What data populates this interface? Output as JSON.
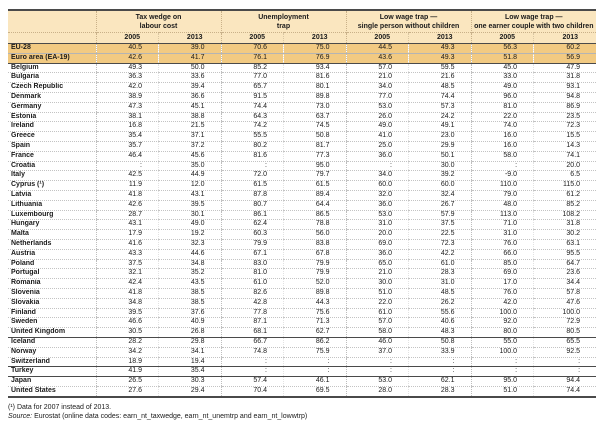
{
  "colors": {
    "header_bg": "#FAE6BF",
    "highlight_bg": "#F2CA82",
    "rule_dark": "#4A4A4A"
  },
  "table": {
    "col_groups": [
      {
        "line1": "Tax wedge on",
        "line2": "labour cost"
      },
      {
        "line1": "Unemployment",
        "line2": "trap"
      },
      {
        "line1": "Low wage trap —",
        "line2": "single person without children"
      },
      {
        "line1": "Low wage trap —",
        "line2": "one earner couple with two children"
      }
    ],
    "year_headers": [
      "2005",
      "2013",
      "2005",
      "2013",
      "2005",
      "2013",
      "2005",
      "2013"
    ],
    "rows": [
      {
        "name": "EU-28",
        "values": [
          "40.5",
          "39.0",
          "70.6",
          "75.0",
          "44.5",
          "49.3",
          "56.3",
          "60.2"
        ],
        "highlight": true
      },
      {
        "name": "Euro area (EA-19)",
        "values": [
          "42.6",
          "41.7",
          "76.1",
          "76.9",
          "43.6",
          "49.3",
          "51.8",
          "56.9"
        ],
        "highlight": true,
        "rule_after": true
      },
      {
        "name": "Belgium",
        "values": [
          "49.3",
          "50.0",
          "85.2",
          "93.4",
          "57.0",
          "59.5",
          "45.0",
          "47.9"
        ]
      },
      {
        "name": "Bulgaria",
        "values": [
          "36.3",
          "33.6",
          "77.0",
          "81.6",
          "21.0",
          "21.6",
          "33.0",
          "31.8"
        ]
      },
      {
        "name": "Czech Republic",
        "values": [
          "42.0",
          "39.4",
          "65.7",
          "80.1",
          "34.0",
          "48.5",
          "49.0",
          "93.1"
        ]
      },
      {
        "name": "Denmark",
        "values": [
          "38.9",
          "36.6",
          "91.5",
          "89.8",
          "77.0",
          "74.4",
          "96.0",
          "94.8"
        ]
      },
      {
        "name": "Germany",
        "values": [
          "47.3",
          "45.1",
          "74.4",
          "73.0",
          "53.0",
          "57.3",
          "81.0",
          "86.9"
        ]
      },
      {
        "name": "Estonia",
        "values": [
          "38.1",
          "38.8",
          "64.3",
          "63.7",
          "26.0",
          "24.2",
          "22.0",
          "23.5"
        ]
      },
      {
        "name": "Ireland",
        "values": [
          "16.8",
          "21.5",
          "74.2",
          "74.5",
          "49.0",
          "49.1",
          "74.0",
          "72.3"
        ]
      },
      {
        "name": "Greece",
        "values": [
          "35.4",
          "37.1",
          "55.5",
          "50.8",
          "41.0",
          "23.0",
          "16.0",
          "15.5"
        ]
      },
      {
        "name": "Spain",
        "values": [
          "35.7",
          "37.2",
          "80.2",
          "81.7",
          "25.0",
          "29.9",
          "16.0",
          "14.3"
        ]
      },
      {
        "name": "France",
        "values": [
          "46.4",
          "45.6",
          "81.6",
          "77.3",
          "36.0",
          "50.1",
          "58.0",
          "74.1"
        ]
      },
      {
        "name": "Croatia",
        "values": [
          ":",
          "35.0",
          ":",
          "95.0",
          ":",
          "30.0",
          ":",
          "20.0"
        ]
      },
      {
        "name": "Italy",
        "values": [
          "42.5",
          "44.9",
          "72.0",
          "79.7",
          "34.0",
          "39.2",
          "-9.0",
          "6.5"
        ]
      },
      {
        "name": "Cyprus (¹)",
        "values": [
          "11.9",
          "12.0",
          "61.5",
          "61.5",
          "60.0",
          "60.0",
          "110.0",
          "115.0"
        ]
      },
      {
        "name": "Latvia",
        "values": [
          "41.8",
          "43.1",
          "87.8",
          "89.4",
          "32.0",
          "32.4",
          "79.0",
          "61.2"
        ]
      },
      {
        "name": "Lithuania",
        "values": [
          "42.6",
          "39.5",
          "80.7",
          "64.4",
          "36.0",
          "26.7",
          "48.0",
          "85.2"
        ]
      },
      {
        "name": "Luxembourg",
        "values": [
          "28.7",
          "30.1",
          "86.1",
          "86.5",
          "53.0",
          "57.9",
          "113.0",
          "108.2"
        ]
      },
      {
        "name": "Hungary",
        "values": [
          "43.1",
          "49.0",
          "62.4",
          "78.8",
          "31.0",
          "37.5",
          "71.0",
          "31.8"
        ]
      },
      {
        "name": "Malta",
        "values": [
          "17.9",
          "19.2",
          "60.3",
          "56.0",
          "20.0",
          "22.5",
          "31.0",
          "30.2"
        ]
      },
      {
        "name": "Netherlands",
        "values": [
          "41.6",
          "32.3",
          "79.9",
          "83.8",
          "69.0",
          "72.3",
          "76.0",
          "63.1"
        ]
      },
      {
        "name": "Austria",
        "values": [
          "43.3",
          "44.6",
          "67.1",
          "67.8",
          "36.0",
          "42.2",
          "66.0",
          "95.5"
        ]
      },
      {
        "name": "Poland",
        "values": [
          "37.5",
          "34.8",
          "83.0",
          "79.9",
          "65.0",
          "61.0",
          "85.0",
          "64.7"
        ]
      },
      {
        "name": "Portugal",
        "values": [
          "32.1",
          "35.2",
          "81.0",
          "79.9",
          "21.0",
          "28.3",
          "69.0",
          "23.6"
        ]
      },
      {
        "name": "Romania",
        "values": [
          "42.4",
          "43.5",
          "61.0",
          "52.0",
          "30.0",
          "31.0",
          "17.0",
          "34.4"
        ]
      },
      {
        "name": "Slovenia",
        "values": [
          "41.8",
          "38.5",
          "82.6",
          "89.8",
          "51.0",
          "48.5",
          "76.0",
          "57.8"
        ]
      },
      {
        "name": "Slovakia",
        "values": [
          "34.8",
          "38.5",
          "42.8",
          "44.3",
          "22.0",
          "26.2",
          "42.0",
          "47.6"
        ]
      },
      {
        "name": "Finland",
        "values": [
          "39.5",
          "37.6",
          "77.8",
          "75.6",
          "61.0",
          "55.6",
          "100.0",
          "100.0"
        ]
      },
      {
        "name": "Sweden",
        "values": [
          "46.6",
          "40.9",
          "87.1",
          "71.3",
          "57.0",
          "40.6",
          "92.0",
          "72.9"
        ]
      },
      {
        "name": "United Kingdom",
        "values": [
          "30.5",
          "26.8",
          "68.1",
          "62.7",
          "58.0",
          "48.3",
          "80.0",
          "80.5"
        ],
        "rule_after": true
      },
      {
        "name": "Iceland",
        "values": [
          "28.2",
          "29.8",
          "66.7",
          "86.2",
          "46.0",
          "50.8",
          "55.0",
          "65.5"
        ]
      },
      {
        "name": "Norway",
        "values": [
          "34.2",
          "34.1",
          "74.8",
          "75.9",
          "37.0",
          "33.9",
          "100.0",
          "92.5"
        ]
      },
      {
        "name": "Switzerland",
        "values": [
          "18.9",
          "19.4",
          ":",
          ":",
          ":",
          ":",
          ":",
          ":"
        ],
        "rule_after": true
      },
      {
        "name": "Turkey",
        "values": [
          "41.9",
          "35.4",
          ":",
          ":",
          ":",
          ":",
          ":",
          ":"
        ],
        "rule_after": true
      },
      {
        "name": "Japan",
        "values": [
          "26.5",
          "30.3",
          "57.4",
          "46.1",
          "53.0",
          "62.1",
          "95.0",
          "94.4"
        ]
      },
      {
        "name": "United States",
        "values": [
          "27.6",
          "29.4",
          "70.4",
          "69.5",
          "28.0",
          "28.3",
          "51.0",
          "74.4"
        ]
      }
    ]
  },
  "footnotes": {
    "note1": "(¹) Data for 2007 instead of 2013.",
    "source_label": "Source:",
    "source_text": " Eurostat (online data codes: earn_nt_taxwedge, earn_nt_unemtrp and earn_nt_lowwtrp)"
  }
}
